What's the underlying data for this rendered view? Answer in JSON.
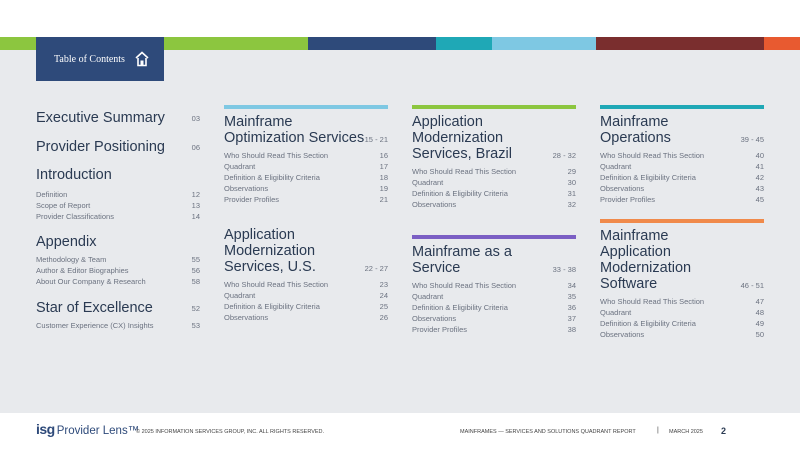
{
  "colors": {
    "topbar": [
      "#8cc63f",
      "#8cc63f",
      "#2e4a7a",
      "#1fa8b6",
      "#7ec8e3",
      "#7a2e2e",
      "#e85a30"
    ],
    "navy": "#2e4a7a"
  },
  "toc_tab": {
    "label": "Table of Contents",
    "icon": "home-icon"
  },
  "left": {
    "executive_summary": {
      "title": "Executive Summary",
      "page": "03"
    },
    "provider_positioning": {
      "title": "Provider Positioning",
      "page": "06"
    },
    "introduction": {
      "title": "Introduction",
      "items": [
        {
          "label": "Definition",
          "page": "12"
        },
        {
          "label": "Scope of Report",
          "page": "13"
        },
        {
          "label": "Provider Classifications",
          "page": "14"
        }
      ]
    },
    "appendix": {
      "title": "Appendix",
      "items": [
        {
          "label": "Methodology & Team",
          "page": "55"
        },
        {
          "label": "Author & Editor Biographies",
          "page": "56"
        },
        {
          "label": "About Our Company & Research",
          "page": "58"
        }
      ]
    },
    "star": {
      "title": "Star of Excellence",
      "page": "52",
      "items": [
        {
          "label": "Customer Experience (CX) Insights",
          "page": "53"
        }
      ]
    }
  },
  "sections": [
    {
      "title": "Mainframe Optimization Services",
      "range": "15 - 21",
      "color": "#7ec8e3",
      "items": [
        {
          "label": "Who Should Read This Section",
          "page": "16"
        },
        {
          "label": "Quadrant",
          "page": "17"
        },
        {
          "label": "Definition & Eligibility Criteria",
          "page": "18"
        },
        {
          "label": "Observations",
          "page": "19"
        },
        {
          "label": "Provider Profiles",
          "page": "21"
        }
      ]
    },
    {
      "title": "Application Modernization Services, Brazil",
      "range": "28 - 32",
      "color": "#8cc63f",
      "items": [
        {
          "label": "Who Should Read This Section",
          "page": "29"
        },
        {
          "label": "Quadrant",
          "page": "30"
        },
        {
          "label": "Definition & Eligibility Criteria",
          "page": "31"
        },
        {
          "label": "Observations",
          "page": "32"
        }
      ]
    },
    {
      "title": "Mainframe Operations",
      "range": "39 - 45",
      "color": "#1fa8b6",
      "items": [
        {
          "label": "Who Should Read This Section",
          "page": "40"
        },
        {
          "label": "Quadrant",
          "page": "41"
        },
        {
          "label": "Definition & Eligibility Criteria",
          "page": "42"
        },
        {
          "label": "Observations",
          "page": "43"
        },
        {
          "label": "Provider Profiles",
          "page": "45"
        }
      ]
    },
    {
      "title": "Application Modernization Services, U.S.",
      "range": "22 - 27",
      "color": "#e8eaed",
      "items": [
        {
          "label": "Who Should Read This Section",
          "page": "23"
        },
        {
          "label": "Quadrant",
          "page": "24"
        },
        {
          "label": "Definition & Eligibility Criteria",
          "page": "25"
        },
        {
          "label": "Observations",
          "page": "26"
        }
      ]
    },
    {
      "title": "Mainframe as a Service",
      "range": "33 - 38",
      "color": "#7b5fc4",
      "items": [
        {
          "label": "Who Should Read This Section",
          "page": "34"
        },
        {
          "label": "Quadrant",
          "page": "35"
        },
        {
          "label": "Definition & Eligibility Criteria",
          "page": "36"
        },
        {
          "label": "Observations",
          "page": "37"
        },
        {
          "label": "Provider Profiles",
          "page": "38"
        }
      ]
    },
    {
      "title": "Mainframe Application Modernization Software",
      "range": "46 - 51",
      "color": "#f08a4b",
      "items": [
        {
          "label": "Who Should Read This Section",
          "page": "47"
        },
        {
          "label": "Quadrant",
          "page": "48"
        },
        {
          "label": "Definition & Eligibility Criteria",
          "page": "49"
        },
        {
          "label": "Observations",
          "page": "50"
        }
      ]
    }
  ],
  "footer": {
    "logo_isg": "isg",
    "logo_text": "Provider Lens™",
    "copyright": "© 2025 INFORMATION SERVICES GROUP, INC. ALL RIGHTS RESERVED.",
    "report": "MAINFRAMES — SERVICES AND SOLUTIONS QUADRANT REPORT",
    "separator": "|",
    "date": "MARCH 2025",
    "page": "2"
  }
}
